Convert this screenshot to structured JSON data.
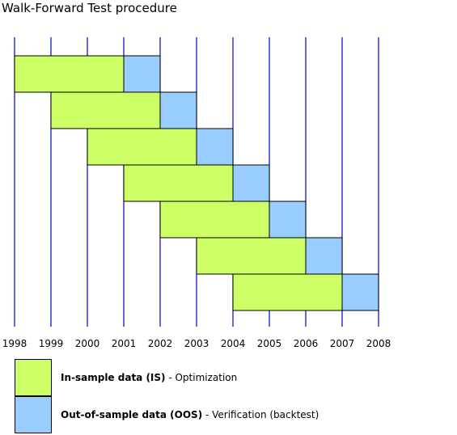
{
  "title": "Walk-Forward Test procedure",
  "chart_data": {
    "type": "diagram",
    "years": [
      "1998",
      "1999",
      "2000",
      "2001",
      "2002",
      "2003",
      "2004",
      "2005",
      "2006",
      "2007",
      "2008"
    ],
    "windows": [
      {
        "is_start": 1998,
        "is_end": 2001,
        "oos_end": 2002
      },
      {
        "is_start": 1999,
        "is_end": 2002,
        "oos_end": 2003
      },
      {
        "is_start": 2000,
        "is_end": 2003,
        "oos_end": 2004
      },
      {
        "is_start": 2001,
        "is_end": 2004,
        "oos_end": 2005
      },
      {
        "is_start": 2002,
        "is_end": 2005,
        "oos_end": 2006
      },
      {
        "is_start": 2003,
        "is_end": 2006,
        "oos_end": 2007
      },
      {
        "is_start": 2004,
        "is_end": 2007,
        "oos_end": 2008
      }
    ]
  },
  "colors": {
    "in_sample": "#CCFF66",
    "out_of_sample": "#99CCFF",
    "gridline": "#0000CC",
    "border": "#000000"
  },
  "legend": {
    "in_sample": {
      "name": "In-sample data (IS)",
      "desc": " - Optimization"
    },
    "out_of_sample": {
      "name": "Out-of-sample data (OOS)",
      "desc": " - Verification (backtest)"
    }
  }
}
